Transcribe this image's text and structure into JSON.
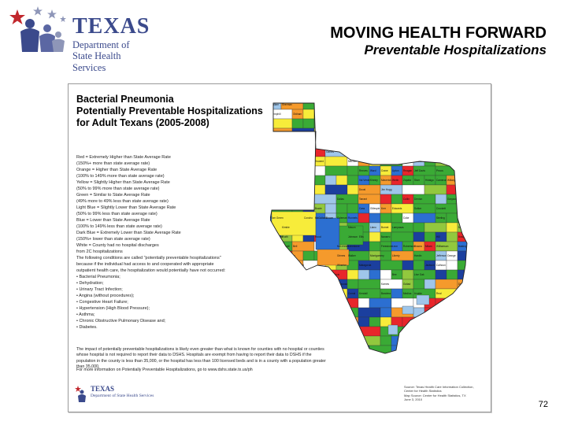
{
  "header": {
    "logo": {
      "name": "TEXAS",
      "dept_line1": "Department of",
      "dept_line2": "State Health Services",
      "brand_colors": {
        "blue": "#3b4a8c",
        "red": "#c1272d",
        "gray": "#8e96b8"
      }
    },
    "title": "MOVING HEALTH FORWARD",
    "subtitle": "Preventable Hospitalizations"
  },
  "sheet": {
    "title_lines": [
      "Bacterial Pneumonia",
      "Potentially Preventable Hospitalizations",
      "for Adult Texans (2005-2008)"
    ],
    "legend_lines": [
      "Red = Extremely Higher than State Average Rate",
      "(150%+ more than state average rate)",
      "Orange = Higher than State Average Rate",
      "(100% to 149% more than state average rate)",
      "Yellow = Slightly Higher than State Average Rate",
      "(50% to 99% more than state average rate)",
      "Green = Similar to State Average Rate",
      "(49% more to 49% less than state average rate)",
      "Light Blue = Slightly Lower than State Average Rate",
      "(50% to 99% less than state average rate)",
      "Blue = Lower than State Average Rate",
      "(100% to 149% less than state average rate)",
      "Dark Blue = Extremely Lower than State Average Rate",
      "(150%+ lower than state average rate)",
      "White = County had no hospital discharges",
      "from 2C hospitalizations"
    ],
    "conditions_intro": "The following conditions are called \"potentially preventable hospitalizations\" because if the individual had access to and cooperated with appropriate outpatient health care, the hospitalization would potentially have not occurred:",
    "conditions": [
      "• Bacterial Pneumonia;",
      "• Dehydration;",
      "• Urinary Tract Infection;",
      "• Angina (without procedures);",
      "• Congestive Heart Failure;",
      "• Hypertension (High Blood Pressure);",
      "• Asthma;",
      "• Chronic Obstructive Pulmonary Disease and;",
      "• Diabetes."
    ],
    "footnote": "The impact of potentially preventable hospitalizations is likely even greater than what is known for counties with no hospital or counties whose hospital is not required to report their data to DSHS. Hospitals are exempt from having to report their data to DSHS if the population in the county is less than 35,000, or the hospital has less than 100 licensed beds and is in a county with a population greater than 35,000.",
    "more_info": "For more information on Potentially Preventable Hospitalizations, go to www.dshs.state.tx.us/ph",
    "small_logo": {
      "name": "TEXAS",
      "dept": "Department of State Health Services"
    },
    "source_lines": [
      "Source: Texas Health Care Information Collection,",
      "Center for Health Statistics",
      "Map Source: Center for Health Statistics, TX",
      "June 3, 2010"
    ],
    "map_colors": {
      "red": "#e8262b",
      "orange": "#f59a2c",
      "yellow": "#f7ec3a",
      "green": "#3aaa35",
      "light_blue": "#9fc6ea",
      "blue": "#2c6fd1",
      "dark_blue": "#1b3f9e",
      "white": "#ffffff",
      "lime": "#92c83e"
    },
    "map_labels": [
      "Dallam",
      "Sherman",
      "Hansford",
      "Ochiltree",
      "Lipscomb",
      "Hartley",
      "Moore",
      "Hutchinson",
      "Roberts",
      "Hemphill",
      "Oldham",
      "Potter",
      "Carson",
      "Gray",
      "Wheeler",
      "Deaf Smith",
      "Randall",
      "Armstrong",
      "Donley",
      "Collingsworth",
      "Parmer",
      "Castro",
      "Swisher",
      "Briscoe",
      "Hall",
      "Childress",
      "Bailey",
      "Lamb",
      "Hale",
      "Floyd",
      "Motley",
      "Cottle",
      "Hardeman",
      "Cochran",
      "Hockley",
      "Lubbock",
      "Crosby",
      "Dickens",
      "King",
      "Knox",
      "Baylor",
      "Yoakum",
      "Terry",
      "Lynn",
      "Garza",
      "Kent",
      "Stonewall",
      "Haskell",
      "Gaines",
      "Dawson",
      "Borden",
      "Scurry",
      "Fisher",
      "Jones",
      "Andrews",
      "Martin",
      "Howard",
      "Mitchell",
      "Nolan",
      "Taylor",
      "Loving",
      "Winkler",
      "Ector",
      "Midland",
      "Glasscock",
      "El Paso",
      "Hudspeth",
      "Culberson",
      "Reeves",
      "Ward",
      "Crane",
      "Upton",
      "Reagan",
      "Jeff Davis",
      "Pecos",
      "Presidio",
      "Brewster",
      "Terrell",
      "Val Verde",
      "Kinney",
      "Maverick",
      "Webb",
      "Zapata",
      "Starr",
      "Hidalgo",
      "Cameron",
      "Willacy",
      "Kenedy",
      "Kleberg",
      "Nueces",
      "Duval",
      "Jim Hogg",
      "Brooks",
      "Bexar",
      "Travis",
      "Harris",
      "Dallas",
      "Tarrant",
      "Collin",
      "Denton",
      "Grayson",
      "Fannin",
      "Lamar",
      "Red River",
      "Bowie",
      "Cass",
      "Gillespie",
      "Kerr",
      "Edwards",
      "Sutton",
      "Crockett",
      "Schleicher",
      "Tom Green",
      "Concho",
      "McCulloch",
      "Brown",
      "Coleman",
      "Runnels",
      "Coke",
      "Sterling",
      "Irion",
      "Menard",
      "Kimble",
      "Mason",
      "Llano",
      "Burnet",
      "Lampasas",
      "Mills",
      "San Saba",
      "Comanche",
      "Erath",
      "Hood",
      "Johnson",
      "Ellis",
      "Navarro",
      "Hill",
      "Bosque",
      "Hamilton",
      "Coryell",
      "Bell",
      "McLennan",
      "Limestone",
      "Freestone",
      "Leon",
      "Robertson",
      "Brazos",
      "Milam",
      "Williamson",
      "Bastrop",
      "Lee",
      "Burleson",
      "Washington",
      "Grimes",
      "Walker",
      "Montgomery",
      "Liberty",
      "Hardin",
      "Jefferson",
      "Orange",
      "Galveston",
      "Brazoria",
      "Fort Bend",
      "Wharton",
      "Matagorda",
      "Jackson",
      "Calhoun",
      "Victoria",
      "Refugio",
      "Aransas",
      "San Patricio",
      "Bee",
      "Live Oak",
      "McMullen",
      "La Salle",
      "Dimmit",
      "Zavala",
      "Frio",
      "Atascosa",
      "Karnes",
      "Goliad",
      "DeWitt",
      "Gonzales",
      "Wilson",
      "Guadalupe",
      "Caldwell",
      "Hays",
      "Comal",
      "Kendall",
      "Bandera",
      "Medina",
      "Uvalde",
      "Real"
    ]
  },
  "page_number": "72"
}
